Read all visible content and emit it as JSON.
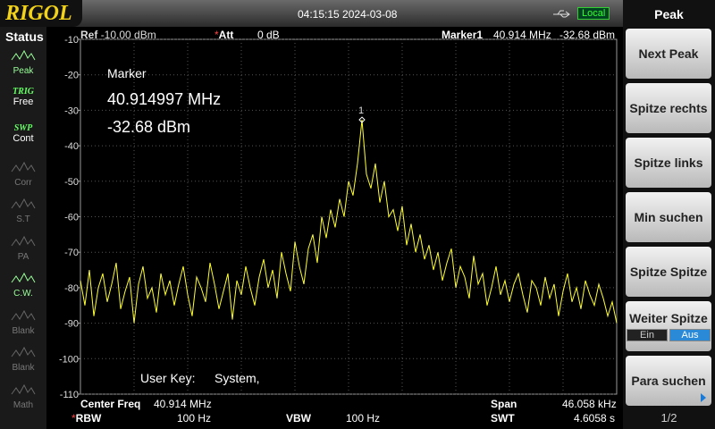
{
  "header": {
    "brand": "RIGOL",
    "datetime": "04:15:15 2024-03-08",
    "remote": "Local"
  },
  "status": {
    "title": "Status",
    "items": [
      [
        "Peak"
      ],
      [
        "TRIG",
        "Free"
      ],
      [
        "SWP",
        "Cont"
      ],
      [
        "Corr"
      ],
      [
        "S.T"
      ],
      [
        "PA"
      ],
      [
        "C.W."
      ],
      [
        "Blank"
      ],
      [
        "Blank"
      ],
      [
        "Math"
      ]
    ]
  },
  "info": {
    "ref_label": "Ref",
    "ref_value": "-10.00 dBm",
    "att_label": "Att",
    "att_value": "0 dB",
    "marker_label": "Marker1",
    "marker_freq": "40.914 MHz",
    "marker_level": "-32.68 dBm"
  },
  "marker_box": {
    "title": "Marker",
    "freq": "40.914997 MHz",
    "level": "-32.68 dBm"
  },
  "user_key": {
    "label": "User Key:",
    "value": "System,"
  },
  "footer": {
    "center_label": "Center Freq",
    "center_value": "40.914 MHz",
    "span_label": "Span",
    "span_value": "46.058 kHz",
    "rbw_label": "RBW",
    "rbw_value": "100 Hz",
    "vbw_label": "VBW",
    "vbw_value": "100 Hz",
    "swt_label": "SWT",
    "swt_value": "4.6058 s"
  },
  "menu": {
    "title": "Peak",
    "buttons": [
      "Next Peak",
      "Spitze rechts",
      "Spitze links",
      "Min suchen",
      "Spitze Spitze"
    ],
    "toggle": {
      "label": "Weiter Spitze",
      "options": [
        "Ein",
        "Aus"
      ]
    },
    "last": "Para suchen",
    "page": "1/2"
  },
  "chart_data": {
    "type": "line",
    "marker_label": "1",
    "color": "#ffff33",
    "ylim": [
      -110,
      -10
    ],
    "yticks": [
      -10,
      -20,
      -30,
      -40,
      -50,
      -60,
      -70,
      -80,
      -90,
      -100,
      -110
    ],
    "grid": true,
    "values": [
      -78,
      -85,
      -75,
      -88,
      -80,
      -76,
      -84,
      -79,
      -73,
      -86,
      -81,
      -77,
      -90,
      -79,
      -74,
      -83,
      -80,
      -87,
      -76,
      -82,
      -78,
      -85,
      -79,
      -74,
      -82,
      -88,
      -77,
      -80,
      -84,
      -73,
      -79,
      -86,
      -81,
      -76,
      -89,
      -78,
      -82,
      -74,
      -80,
      -85,
      -77,
      -72,
      -80,
      -75,
      -83,
      -70,
      -76,
      -81,
      -67,
      -74,
      -79,
      -69,
      -65,
      -73,
      -60,
      -66,
      -58,
      -63,
      -55,
      -60,
      -50,
      -54,
      -45,
      -32.68,
      -48,
      -52,
      -45,
      -56,
      -50,
      -60,
      -58,
      -64,
      -57,
      -68,
      -62,
      -70,
      -65,
      -72,
      -68,
      -75,
      -70,
      -78,
      -73,
      -69,
      -80,
      -74,
      -77,
      -83,
      -71,
      -79,
      -76,
      -85,
      -80,
      -74,
      -82,
      -78,
      -84,
      -79,
      -76,
      -82,
      -87,
      -78,
      -80,
      -85,
      -77,
      -83,
      -79,
      -88,
      -81,
      -76,
      -84,
      -80,
      -86,
      -78,
      -82,
      -85,
      -79,
      -83,
      -88,
      -84,
      -90
    ]
  }
}
